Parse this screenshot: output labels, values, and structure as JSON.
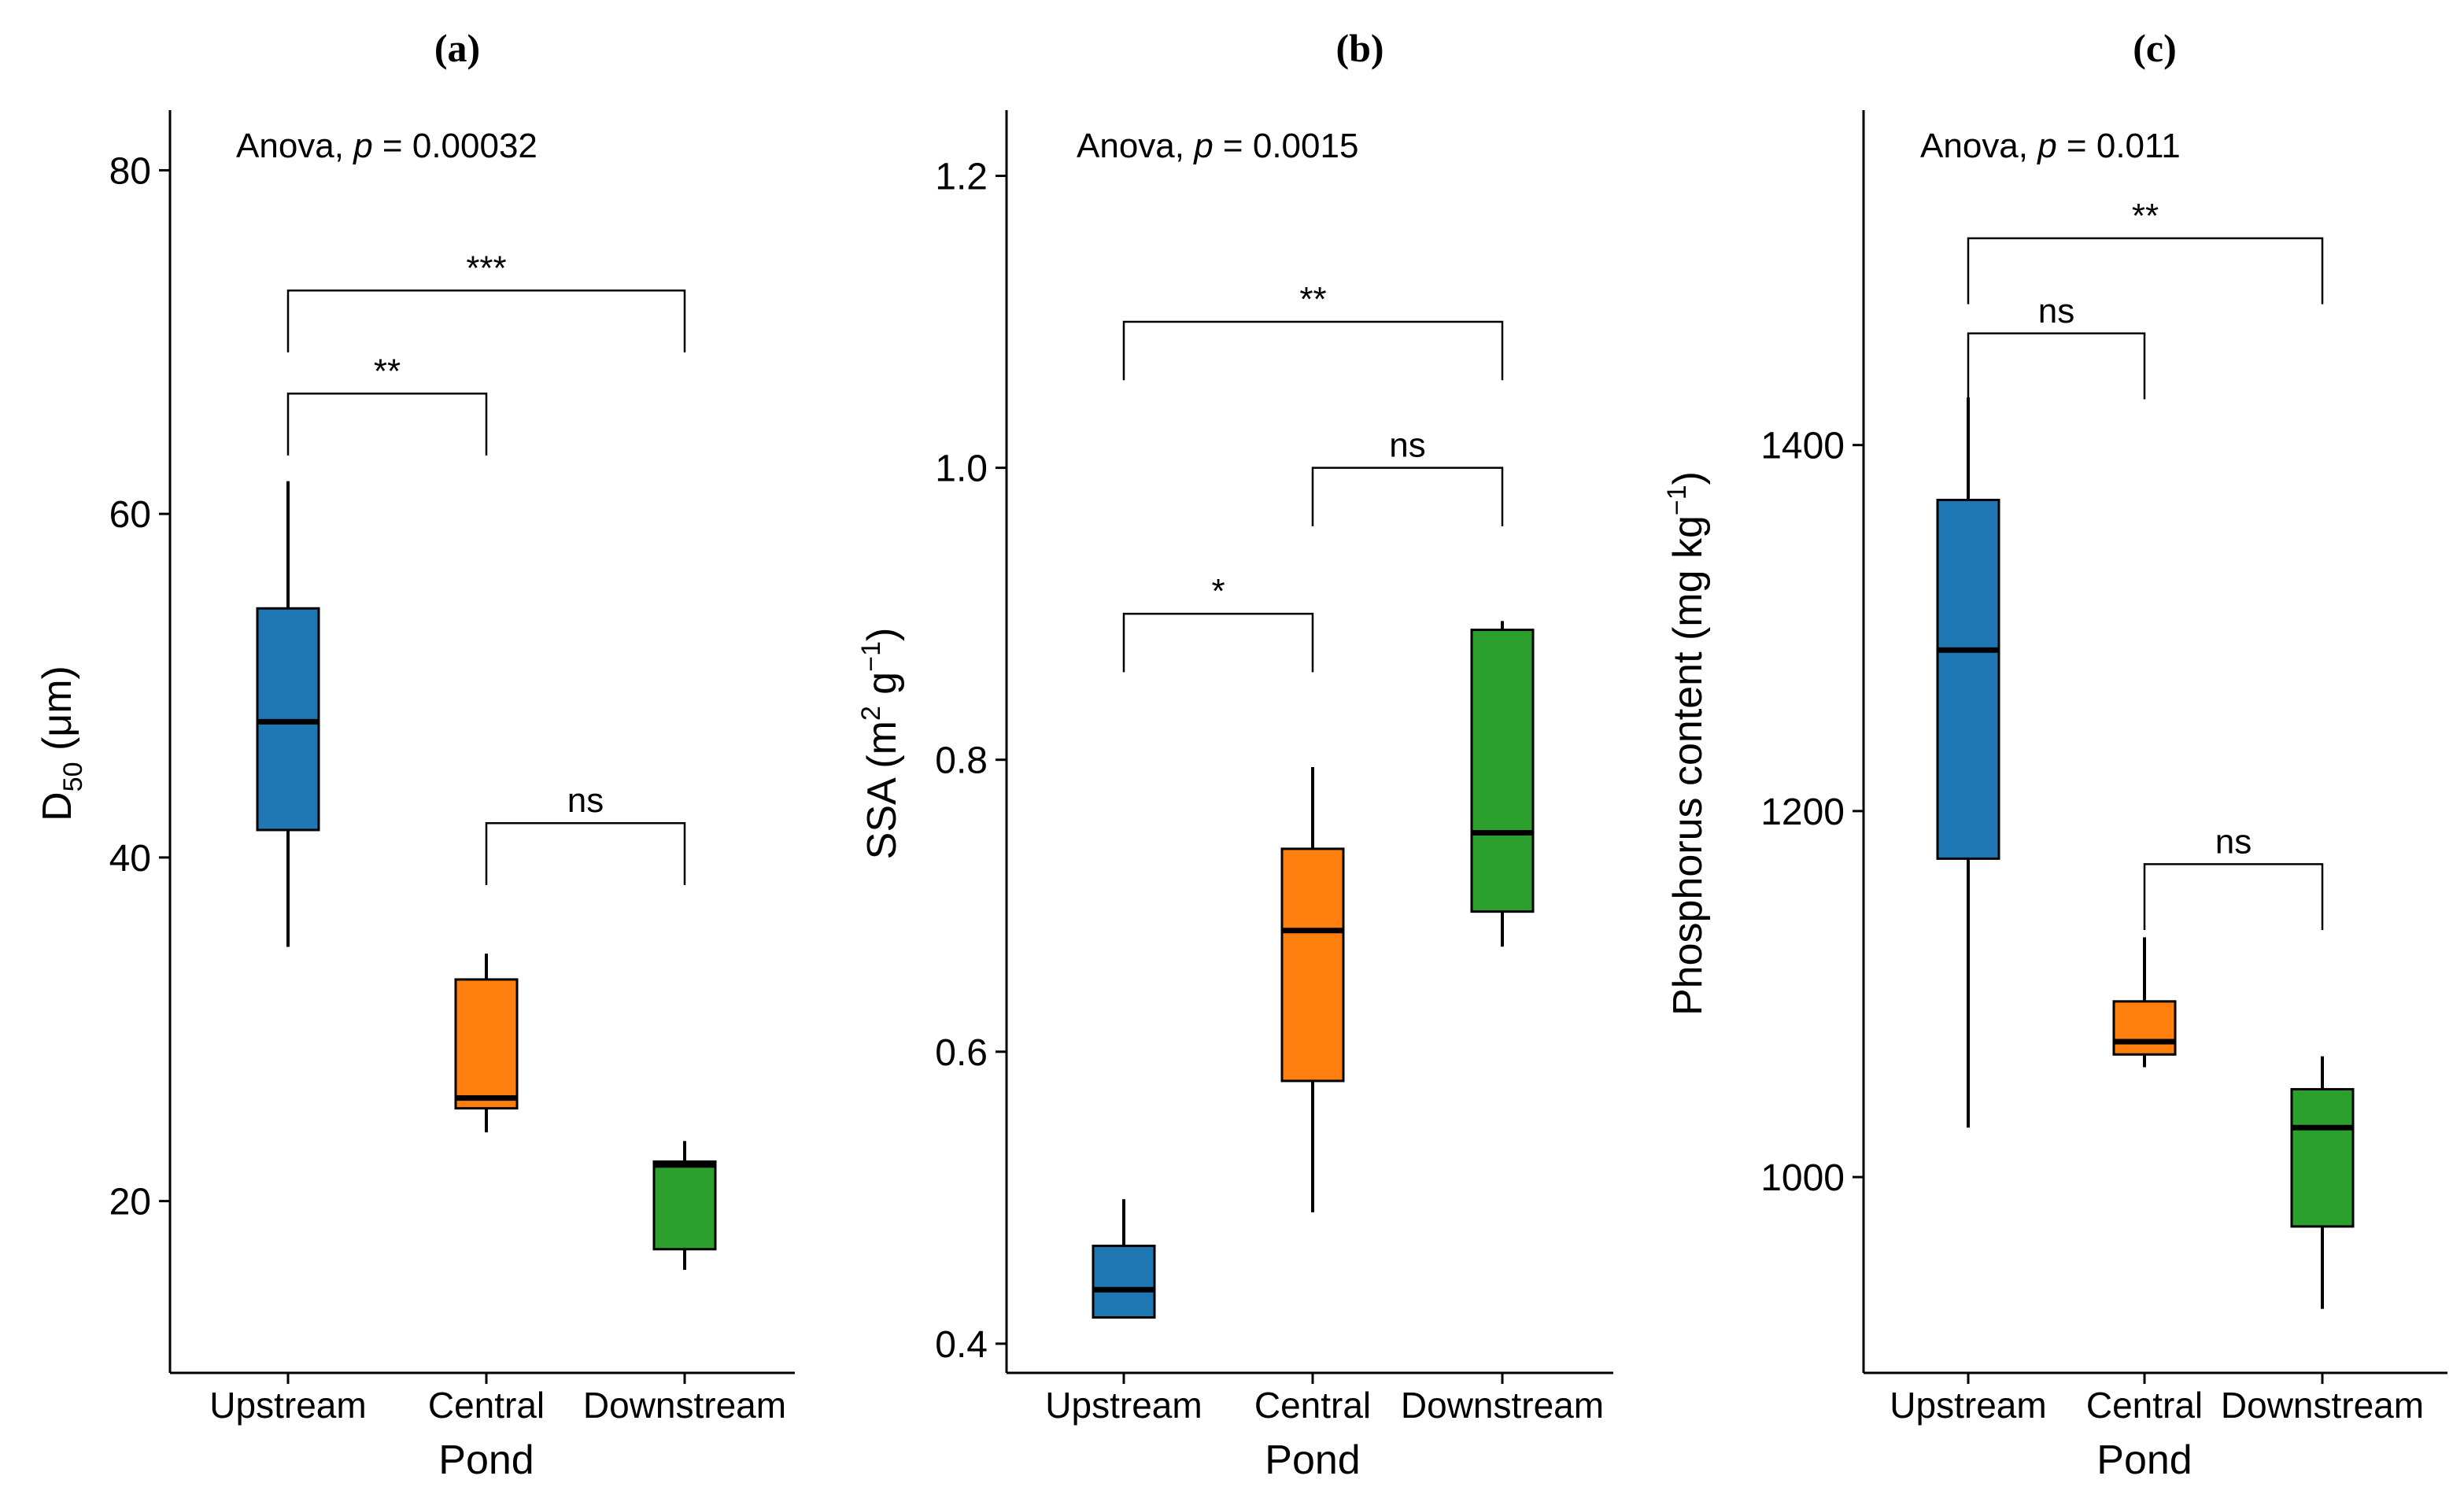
{
  "xlabel": "Pond",
  "categories": [
    "Upstream",
    "Central",
    "Downstream"
  ],
  "colors": {
    "Upstream": "#1F77B4",
    "Central": "#FF7F0E",
    "Downstream": "#2CA02C"
  },
  "chart_data": [
    {
      "type": "boxplot",
      "title": "(a)",
      "ylabel_main": "D",
      "ylabel_sub": "50",
      "ylabel_unit": " (μm)",
      "ylim": [
        10,
        83.5
      ],
      "yticks": [
        20,
        40,
        60,
        80
      ],
      "anova": {
        "prefix": "Anova, ",
        "p_symbol": "p",
        "p_text": " = 0.00032"
      },
      "boxes": [
        {
          "category": "Upstream",
          "min": 34.8,
          "q1": 41.6,
          "median": 47.9,
          "q3": 54.5,
          "max": 61.9
        },
        {
          "category": "Central",
          "min": 24.0,
          "q1": 25.4,
          "median": 26.0,
          "q3": 32.9,
          "max": 34.4
        },
        {
          "category": "Downstream",
          "min": 16.0,
          "q1": 17.2,
          "median": 22.1,
          "q3": 22.3,
          "max": 23.5
        }
      ],
      "comparisons": [
        {
          "from": 0,
          "to": 1,
          "label": "**",
          "y": 67.0,
          "tip": 1.8
        },
        {
          "from": 0,
          "to": 2,
          "label": "***",
          "y": 73.0,
          "tip": 1.8
        },
        {
          "from": 1,
          "to": 2,
          "label": "ns",
          "y": 42.0,
          "tip": 1.8
        }
      ]
    },
    {
      "type": "boxplot",
      "title": "(b)",
      "ylabel_main": "SSA (m",
      "ylabel_sup1": "2",
      "ylabel_mid": " g",
      "ylabel_sup2": "−1",
      "ylabel_end": ")",
      "ylim": [
        0.38,
        1.245
      ],
      "yticks": [
        0.4,
        0.6,
        0.8,
        1.0,
        1.2
      ],
      "ytick_labels": [
        "0.4",
        "0.6",
        "0.8",
        "1.0",
        "1.2"
      ],
      "anova": {
        "prefix": "Anova, ",
        "p_symbol": "p",
        "p_text": " = 0.0015"
      },
      "boxes": [
        {
          "category": "Upstream",
          "min": 0.418,
          "q1": 0.418,
          "median": 0.437,
          "q3": 0.467,
          "max": 0.499
        },
        {
          "category": "Central",
          "min": 0.49,
          "q1": 0.58,
          "median": 0.683,
          "q3": 0.739,
          "max": 0.795
        },
        {
          "category": "Downstream",
          "min": 0.672,
          "q1": 0.696,
          "median": 0.75,
          "q3": 0.889,
          "max": 0.895
        }
      ],
      "comparisons": [
        {
          "from": 0,
          "to": 1,
          "label": "*",
          "y": 0.9,
          "tip": 0.02
        },
        {
          "from": 0,
          "to": 2,
          "label": "**",
          "y": 1.1,
          "tip": 0.02
        },
        {
          "from": 1,
          "to": 2,
          "label": "ns",
          "y": 1.0,
          "tip": 0.02
        }
      ]
    },
    {
      "type": "boxplot",
      "title": "(c)",
      "ylabel_main": "Phosphorus content (mg kg",
      "ylabel_sup": "−1",
      "ylabel_end": ")",
      "ylim": [
        893,
        1583
      ],
      "yticks": [
        1000,
        1200,
        1400
      ],
      "anova": {
        "prefix": "Anova, ",
        "p_symbol": "p",
        "p_text": " = 0.011"
      },
      "boxes": [
        {
          "category": "Upstream",
          "min": 1027,
          "q1": 1174,
          "median": 1288,
          "q3": 1370,
          "max": 1426
        },
        {
          "category": "Central",
          "min": 1060,
          "q1": 1067,
          "median": 1074,
          "q3": 1096,
          "max": 1131
        },
        {
          "category": "Downstream",
          "min": 928,
          "q1": 973,
          "median": 1027,
          "q3": 1048,
          "max": 1066
        }
      ],
      "comparisons": [
        {
          "from": 0,
          "to": 1,
          "label": "ns",
          "y": 1461,
          "tip": 18
        },
        {
          "from": 0,
          "to": 2,
          "label": "**",
          "y": 1513,
          "tip": 18
        },
        {
          "from": 1,
          "to": 2,
          "label": "ns",
          "y": 1171,
          "tip": 18
        }
      ]
    }
  ]
}
